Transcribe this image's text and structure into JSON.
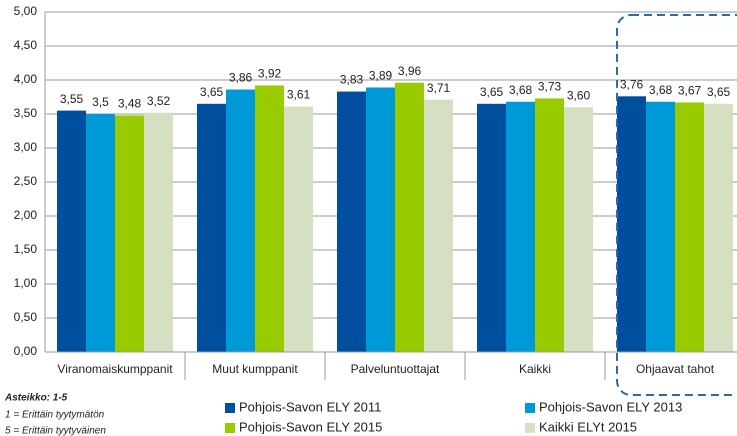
{
  "chart_data": {
    "type": "bar",
    "categories": [
      "Viranomaiskumppanit",
      "Muut kumppanit",
      "Palveluntuottajat",
      "Kaikki",
      "Ohjaavat tahot"
    ],
    "series": [
      {
        "name": "Pohjois-Savon ELY 2011",
        "color": "#004f9f",
        "values": [
          3.55,
          3.65,
          3.83,
          3.65,
          3.76
        ],
        "value_labels": [
          "3,55",
          "3,65",
          "3,83",
          "3,65",
          "3,76"
        ]
      },
      {
        "name": "Pohjois-Savon ELY 2013",
        "color": "#0099d8",
        "values": [
          3.5,
          3.86,
          3.89,
          3.68,
          3.68
        ],
        "value_labels": [
          "3,5",
          "3,86",
          "3,89",
          "3,68",
          "3,68"
        ]
      },
      {
        "name": "Pohjois-Savon ELY 2015",
        "color": "#99cc00",
        "values": [
          3.48,
          3.92,
          3.96,
          3.73,
          3.67
        ],
        "value_labels": [
          "3,48",
          "3,92",
          "3,96",
          "3,73",
          "3,67"
        ]
      },
      {
        "name": "Kaikki ELYt 2015",
        "color": "#d5dfc2",
        "values": [
          3.52,
          3.61,
          3.71,
          3.6,
          3.65
        ],
        "value_labels": [
          "3,52",
          "3,61",
          "3,71",
          "3,60",
          "3,65"
        ]
      }
    ],
    "ylim": [
      0,
      5
    ],
    "yticks": [
      {
        "value": 0,
        "label": "0,00"
      },
      {
        "value": 0.5,
        "label": "0,50"
      },
      {
        "value": 1,
        "label": "1,00"
      },
      {
        "value": 1.5,
        "label": "1,50"
      },
      {
        "value": 2,
        "label": "2,00"
      },
      {
        "value": 2.5,
        "label": "2,50"
      },
      {
        "value": 3,
        "label": "3,00"
      },
      {
        "value": 3.5,
        "label": "3,50"
      },
      {
        "value": 4,
        "label": "4,00"
      },
      {
        "value": 4.5,
        "label": "4,50"
      },
      {
        "value": 5,
        "label": "5,00"
      }
    ],
    "grid": true,
    "notes": [
      "Asteikko: 1-5",
      "1 = Erittäin tyytymätön",
      "5 = Erittäin tyytyväinen"
    ]
  }
}
